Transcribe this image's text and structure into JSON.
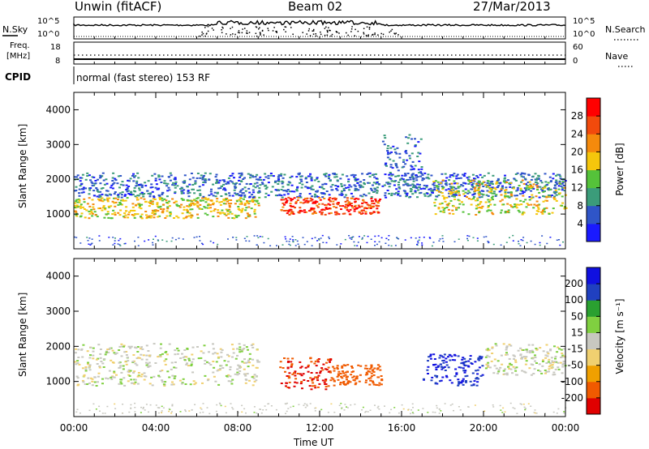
{
  "header": {
    "station": "Unwin (fitACF)",
    "beam": "Beam 02",
    "date": "27/Mar/2013"
  },
  "nsky_panel": {
    "left_label": "N.Sky",
    "right_label": "N.Search",
    "left_ticks": [
      "10^5",
      "10^0"
    ],
    "right_ticks": [
      "10^5",
      "10^0"
    ]
  },
  "freq_panel": {
    "left_label_line1": "Freq.",
    "left_label_line2": "[MHz]",
    "left_ticks": [
      "18",
      "8"
    ],
    "right_label": "Nave",
    "right_ticks": [
      "60",
      "0"
    ]
  },
  "cpid": {
    "label": "CPID",
    "mode": "normal (fast stereo) 153 RF"
  },
  "colors": {
    "power": [
      "#1a1aff",
      "#2f55c8",
      "#3b9c7a",
      "#55c23a",
      "#f5c60c",
      "#f58a0c",
      "#f24a0c",
      "#ff0000"
    ],
    "velocity": [
      "#e00000",
      "#f05a00",
      "#f0a000",
      "#f0d070",
      "#c8c8c0",
      "#80d040",
      "#2aa030",
      "#2040c0",
      "#1010e0"
    ]
  },
  "chart_data": [
    {
      "type": "heatmap",
      "title": "Power",
      "xlabel": "Time UT",
      "ylabel": "Slant Range [km]",
      "x_ticks": [
        "00:00",
        "04:00",
        "08:00",
        "12:00",
        "16:00",
        "20:00",
        "00:00"
      ],
      "xlim_hours": [
        0,
        24
      ],
      "ylim_km": [
        0,
        4500
      ],
      "y_ticks": [
        1000,
        2000,
        3000,
        4000
      ],
      "colorbar": {
        "label": "Power [dB]",
        "range": [
          0,
          32
        ],
        "tick_values": [
          4,
          8,
          12,
          16,
          20,
          24,
          28
        ]
      },
      "echo_bands": [
        {
          "t_start": 0,
          "t_end": 9,
          "range_low_km": 900,
          "range_high_km": 1500,
          "power_db": 18
        },
        {
          "t_start": 0,
          "t_end": 24,
          "range_low_km": 1500,
          "range_high_km": 2200,
          "power_db": 7
        },
        {
          "t_start": 10,
          "t_end": 15,
          "range_low_km": 1000,
          "range_high_km": 1500,
          "power_db": 27
        },
        {
          "t_start": 15,
          "t_end": 17,
          "range_low_km": 2000,
          "range_high_km": 3300,
          "power_db": 6
        },
        {
          "t_start": 17.5,
          "t_end": 24,
          "range_low_km": 1000,
          "range_high_km": 2000,
          "power_db": 17
        }
      ]
    },
    {
      "type": "heatmap",
      "title": "Velocity",
      "xlabel": "Time UT",
      "ylabel": "Slant Range [km]",
      "x_ticks": [
        "00:00",
        "04:00",
        "08:00",
        "12:00",
        "16:00",
        "20:00",
        "00:00"
      ],
      "xlim_hours": [
        0,
        24
      ],
      "ylim_km": [
        0,
        4500
      ],
      "y_ticks": [
        1000,
        2000,
        3000,
        4000
      ],
      "colorbar": {
        "label": "Velocity [m s⁻¹]",
        "tick_labels": [
          "200",
          "100",
          "50",
          "15",
          "-15",
          "-50",
          "-100",
          "-200"
        ]
      },
      "echo_bands": [
        {
          "t_start": 0,
          "t_end": 9,
          "range_low_km": 900,
          "range_high_km": 2100,
          "velocity": 0
        },
        {
          "t_start": 10,
          "t_end": 12.5,
          "range_low_km": 800,
          "range_high_km": 1700,
          "velocity": -200
        },
        {
          "t_start": 12.5,
          "t_end": 15,
          "range_low_km": 900,
          "range_high_km": 1500,
          "velocity": -150
        },
        {
          "t_start": 17,
          "t_end": 20,
          "range_low_km": 900,
          "range_high_km": 1800,
          "velocity": 200
        },
        {
          "t_start": 20,
          "t_end": 24,
          "range_low_km": 1200,
          "range_high_km": 2100,
          "velocity": 0
        }
      ]
    }
  ]
}
